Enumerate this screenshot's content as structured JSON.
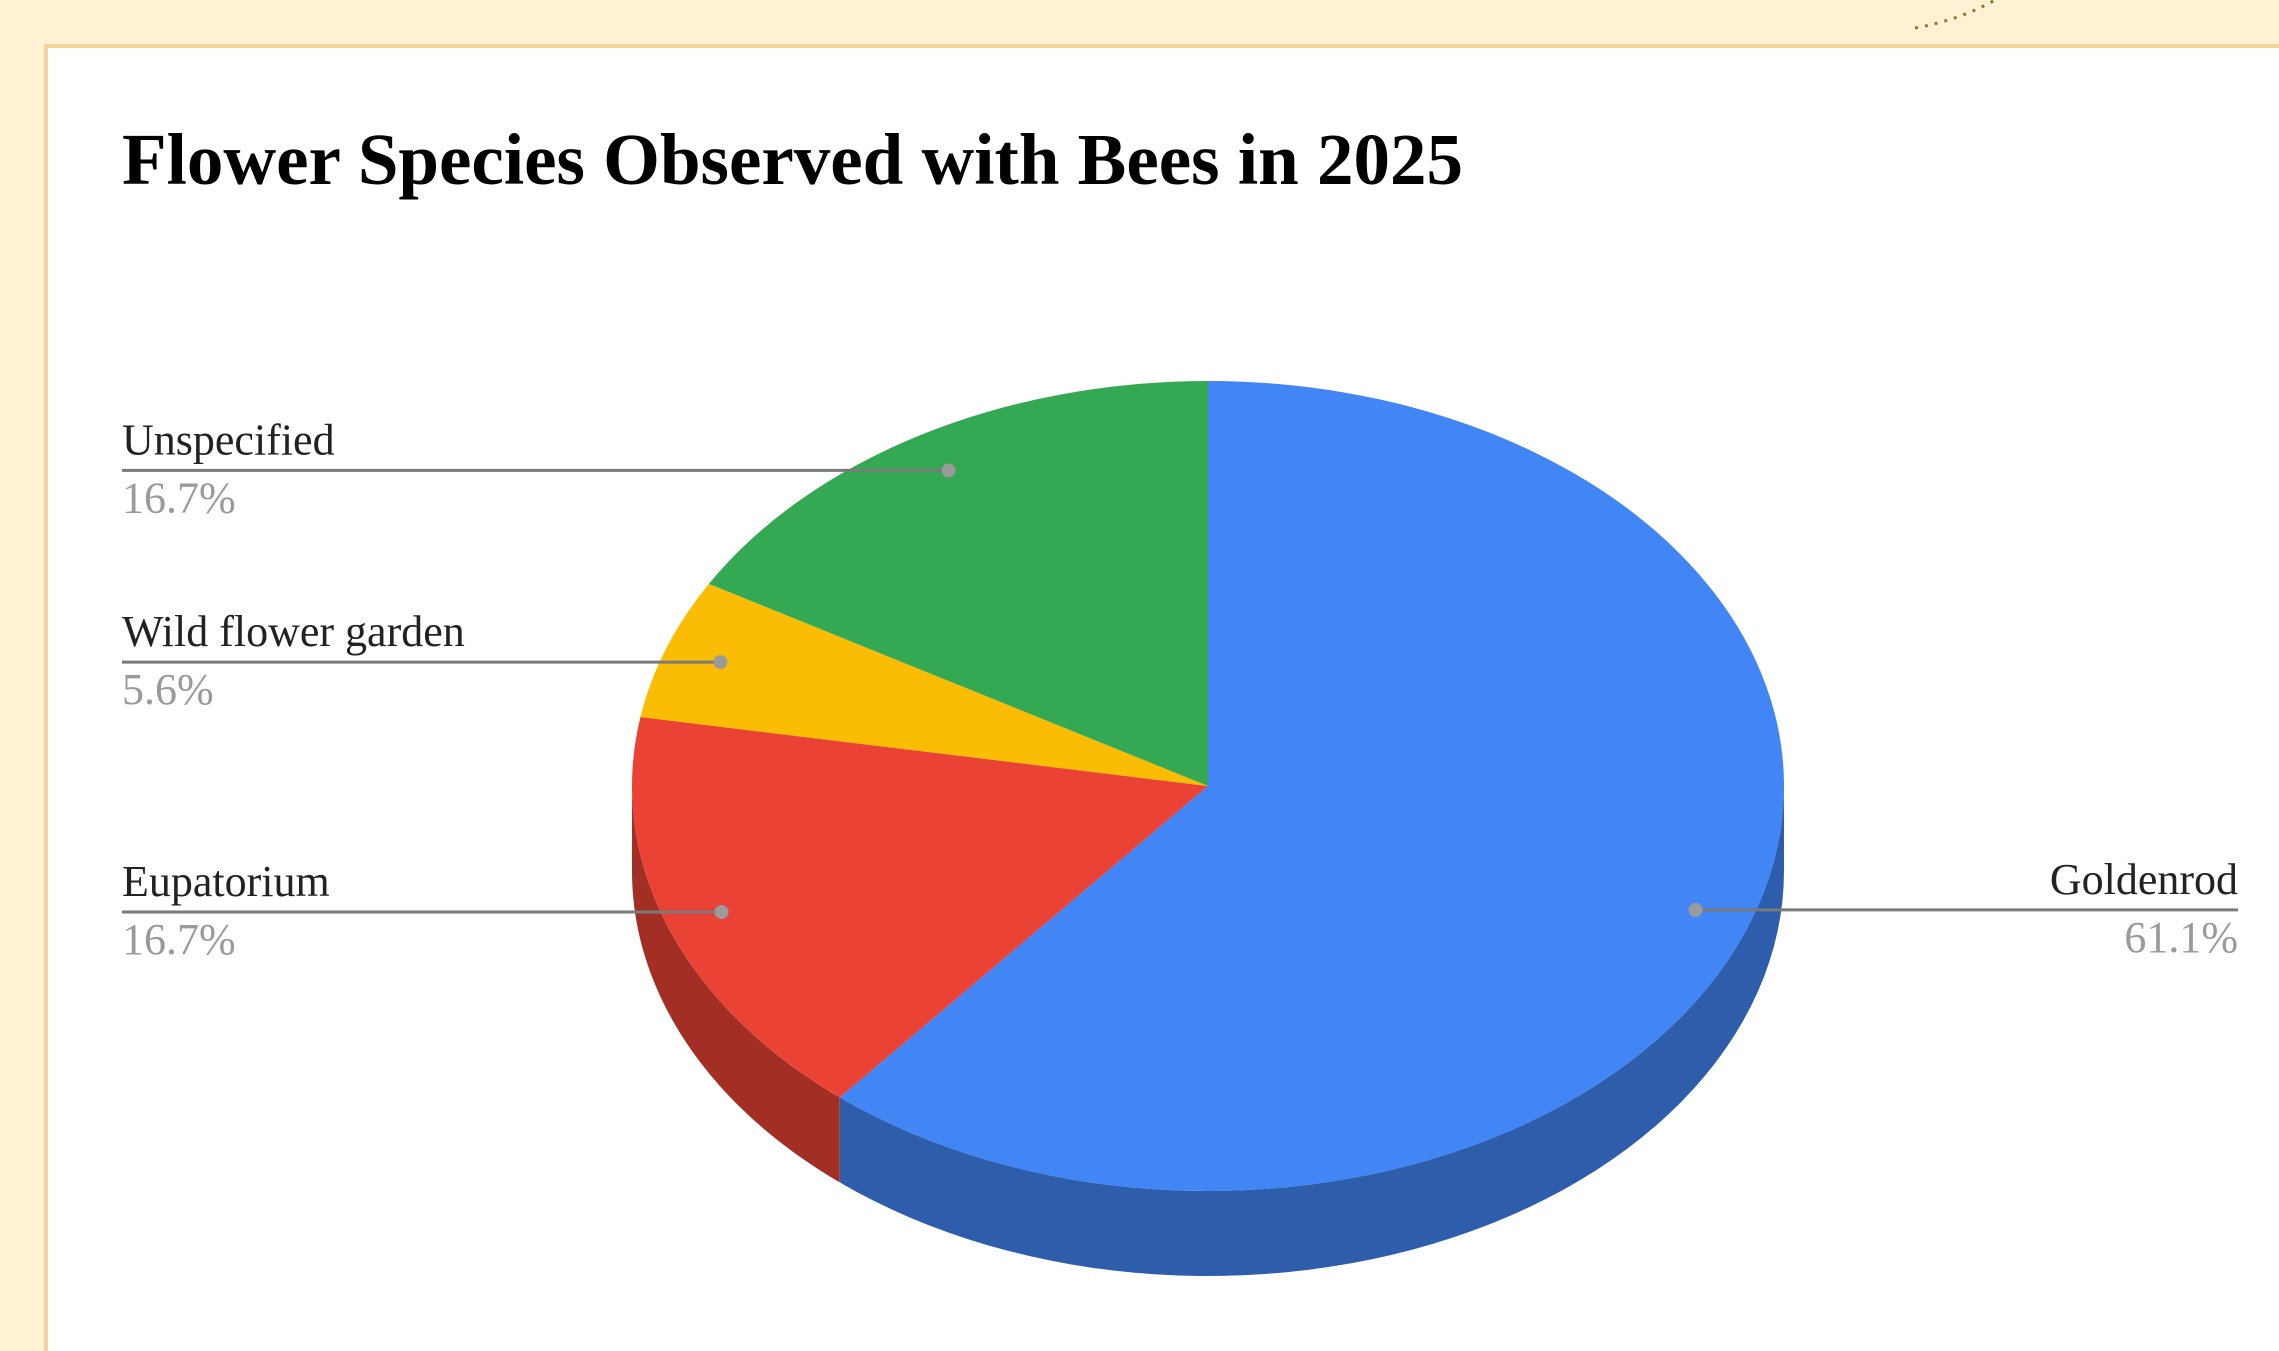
{
  "chart_data": {
    "type": "pie",
    "title": "Flower Species Observed with Bees in 2025",
    "legend": "labels-outside",
    "slices": [
      {
        "label": "Goldenrod",
        "value": 61.1,
        "display": "61.1%",
        "color": "#4285f4",
        "side_color": "#2d5dab"
      },
      {
        "label": "Eupatorium",
        "value": 16.7,
        "display": "16.7%",
        "color": "#ea4335",
        "side_color": "#a22e24"
      },
      {
        "label": "Wild flower garden",
        "value": 5.6,
        "display": "5.6%",
        "color": "#fbbc04",
        "side_color": "#b08303"
      },
      {
        "label": "Unspecified",
        "value": 16.7,
        "display": "16.7%",
        "color": "#34a853",
        "side_color": "#24763a"
      }
    ]
  }
}
